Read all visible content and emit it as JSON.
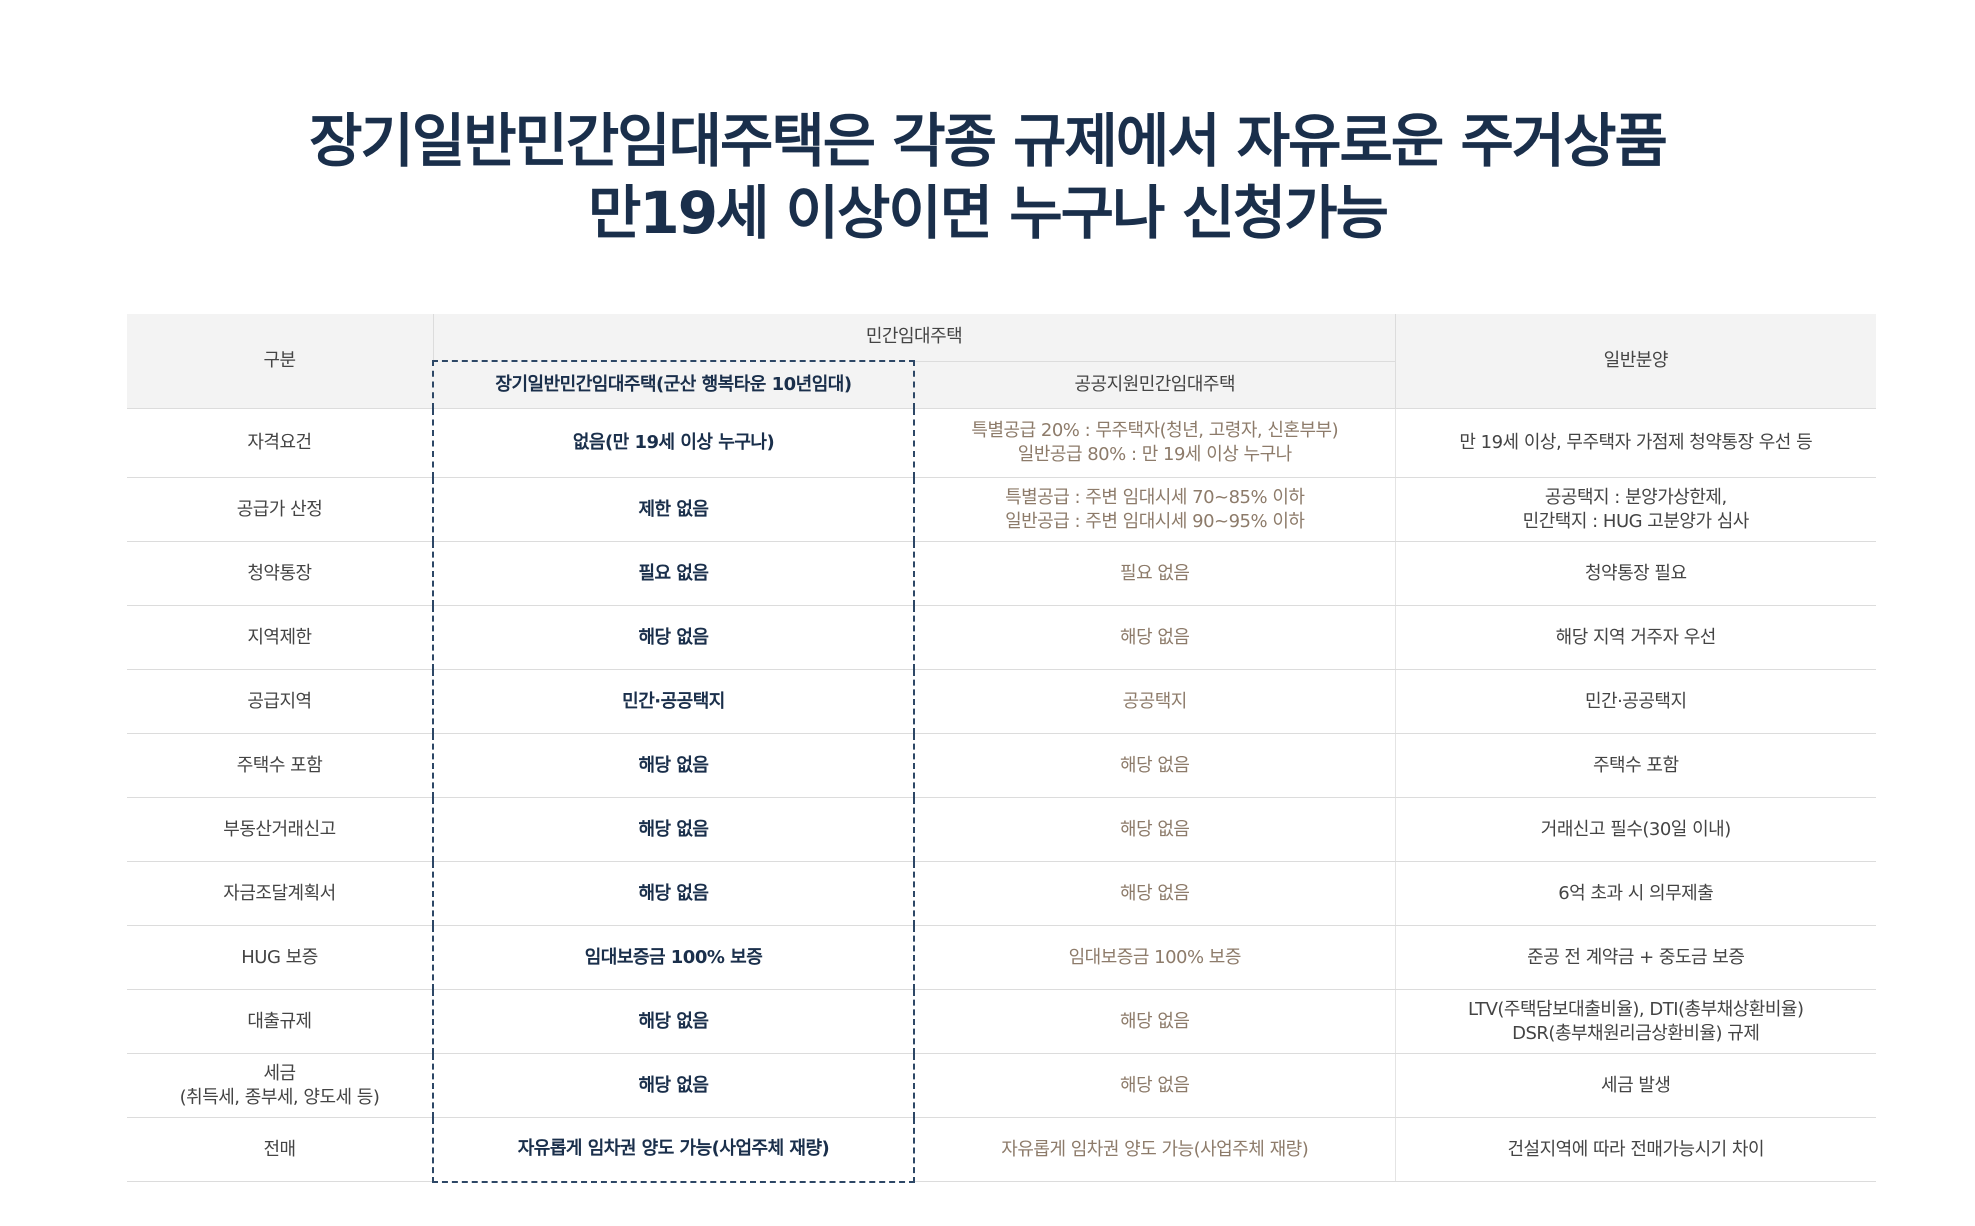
{
  "header": {
    "title_lines": [
      "장기일반민간임대주택은 각종 규제에서 자유로운 주거상품",
      "만19세 이상이면 누구나 신청가능"
    ]
  },
  "table": {
    "head": {
      "category": "구분",
      "group": "민간임대주택",
      "private_long": "장기일반민간임대주택(군산 행복타운 10년임대)",
      "public_support": "공공지원민간임대주택",
      "general": "일반분양"
    },
    "rows": [
      [
        [
          "자격요건"
        ],
        [
          "없음(만 19세 이상 누구나)"
        ],
        [
          "특별공급 20% : 무주택자(청년, 고령자, 신혼부부)",
          "일반공급 80% : 만 19세 이상 누구나"
        ],
        [
          "만 19세 이상, 무주택자 가점제 청약통장 우선 등"
        ]
      ],
      [
        [
          "공급가 산정"
        ],
        [
          "제한 없음"
        ],
        [
          "특별공급 : 주변 임대시세 70~85% 이하",
          "일반공급 : 주변 임대시세 90~95% 이하"
        ],
        [
          "공공택지 : 분양가상한제,",
          "민간택지 : HUG 고분양가 심사"
        ]
      ],
      [
        [
          "청약통장"
        ],
        [
          "필요 없음"
        ],
        [
          "필요 없음"
        ],
        [
          "청약통장 필요"
        ]
      ],
      [
        [
          "지역제한"
        ],
        [
          "해당 없음"
        ],
        [
          "해당 없음"
        ],
        [
          "해당 지역 거주자 우선"
        ]
      ],
      [
        [
          "공급지역"
        ],
        [
          "민간·공공택지"
        ],
        [
          "공공택지"
        ],
        [
          "민간·공공택지"
        ]
      ],
      [
        [
          "주택수 포함"
        ],
        [
          "해당 없음"
        ],
        [
          "해당 없음"
        ],
        [
          "주택수 포함"
        ]
      ],
      [
        [
          "부동산거래신고"
        ],
        [
          "해당 없음"
        ],
        [
          "해당 없음"
        ],
        [
          "거래신고 필수(30일 이내)"
        ]
      ],
      [
        [
          "자금조달계획서"
        ],
        [
          "해당 없음"
        ],
        [
          "해당 없음"
        ],
        [
          "6억 초과 시 의무제출"
        ]
      ],
      [
        [
          "HUG 보증"
        ],
        [
          "임대보증금 100% 보증"
        ],
        [
          "임대보증금 100% 보증"
        ],
        [
          "준공 전 계약금 + 중도금 보증"
        ]
      ],
      [
        [
          "대출규제"
        ],
        [
          "해당 없음"
        ],
        [
          "해당 없음"
        ],
        [
          "LTV(주택담보대출비율), DTI(총부채상환비율)",
          "DSR(총부채원리금상환비율) 규제"
        ]
      ],
      [
        [
          "세금",
          "(취득세, 종부세, 양도세 등)"
        ],
        [
          "해당 없음"
        ],
        [
          "해당 없음"
        ],
        [
          "세금 발생"
        ]
      ],
      [
        [
          "전매"
        ],
        [
          "자유롭게 임차권 양도 가능(사업주체 재량)"
        ],
        [
          "자유롭게 임차권 양도 가능(사업주체 재량)"
        ],
        [
          "건설지역에 따라  전매가능시기 차이"
        ]
      ]
    ]
  }
}
